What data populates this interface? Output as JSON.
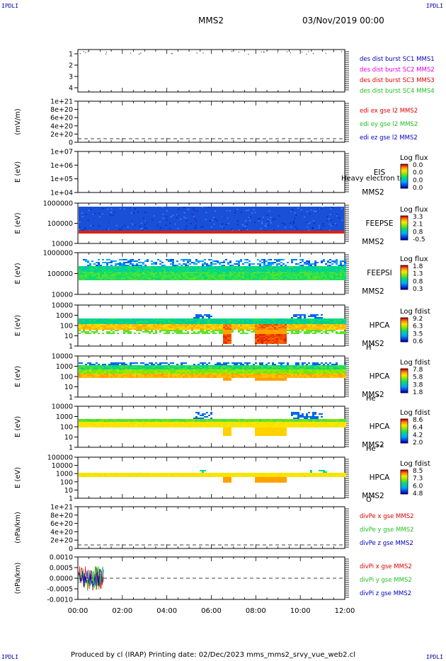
{
  "corner_tl": "IPDLI",
  "corner_tr": "IPDLI",
  "corner_bl": "IPDLI",
  "corner_br": "IPDLI",
  "header": {
    "spacecraft": "MMS2",
    "date": "03/Nov/2019 00:00"
  },
  "footer": "Produced by cl (IRAP)   Printing date: 02/Dec/2023   mms_mms2_srvy_vue_web2.cl",
  "colors": {
    "red": "#e00000",
    "green": "#22c022",
    "blue": "#0000c0",
    "magenta": "#e000e0"
  },
  "chart_data": [
    {
      "type": "line",
      "ylim": [
        0.5,
        4.5
      ],
      "yticks": [
        "1",
        "2",
        "3",
        "4"
      ],
      "legend": [
        {
          "text": "des dist burst SC1 MMS1",
          "color": "#0000c0"
        },
        {
          "text": "des dist burst SC2 MMS2",
          "color": "#e000e0"
        },
        {
          "text": "des dist burst SC3 MMS3",
          "color": "#e00000"
        },
        {
          "text": "des dist burst SC4 MMS4",
          "color": "#22c022"
        }
      ]
    },
    {
      "type": "line",
      "ylabel": "(mV/m)",
      "yticks": [
        "1e+21",
        "8e+20",
        "6e+20",
        "4e+20",
        "2e+20",
        "0"
      ],
      "legend": [
        {
          "text": "edi ex gse l2 MMS2",
          "color": "#e00000"
        },
        {
          "text": "edi ey gse l2 MMS2",
          "color": "#22c022"
        },
        {
          "text": "edi ez gse l2 MMS2",
          "color": "#0000c0"
        }
      ]
    },
    {
      "type": "heatmap",
      "ylabel": "E (eV)",
      "yticks": [
        "1e+07",
        "1e+06",
        "1e+05",
        "1e+04"
      ],
      "instrument": [
        "EIS",
        "MMS2"
      ],
      "overlay": "Heavy electron tof",
      "colorbar": {
        "label": "Log flux",
        "ticks": [
          "0.0",
          "0.0",
          "0.0",
          "0.0"
        ]
      }
    },
    {
      "type": "heatmap",
      "ylabel": "E (eV)",
      "yticks": [
        "1000000",
        "100000",
        "10000"
      ],
      "instrument": [
        "FEEPSE",
        "MMS2"
      ],
      "colorbar": {
        "label": "Log flux",
        "ticks": [
          "3.3",
          "2.1",
          "0.8",
          "-0.5"
        ]
      }
    },
    {
      "type": "heatmap",
      "ylabel": "E (eV)",
      "yticks": [
        "1000000",
        "100000",
        "10000"
      ],
      "instrument": [
        "FEEPSI",
        "MMS2"
      ],
      "colorbar": {
        "label": "Log flux",
        "ticks": [
          "1.8",
          "1.3",
          "0.8",
          "0.3"
        ]
      }
    },
    {
      "type": "heatmap",
      "ylabel": "E (eV)",
      "yticks": [
        "10000",
        "1000",
        "100",
        "10",
        "1"
      ],
      "instrument": [
        "HPCA",
        "MMS2"
      ],
      "species": "H",
      "species_sup": "+",
      "colorbar": {
        "label": "Log fdist",
        "ticks": [
          "9.2",
          "6.3",
          "3.5",
          "0.6"
        ]
      }
    },
    {
      "type": "heatmap",
      "ylabel": "E (eV)",
      "yticks": [
        "10000",
        "1000",
        "100",
        "10",
        "1"
      ],
      "instrument": [
        "HPCA",
        "MMS2"
      ],
      "species": "He",
      "species_sup": "+",
      "colorbar": {
        "label": "Log fdist",
        "ticks": [
          "7.8",
          "5.8",
          "3.8",
          "1.8"
        ]
      }
    },
    {
      "type": "heatmap",
      "ylabel": "E (eV)",
      "yticks": [
        "10000",
        "1000",
        "100",
        "10",
        "1"
      ],
      "instrument": [
        "HPCA",
        "MMS2"
      ],
      "species": "He",
      "species_sup": "++",
      "colorbar": {
        "label": "Log fdist",
        "ticks": [
          "8.6",
          "6.4",
          "4.2",
          "2.0"
        ]
      }
    },
    {
      "type": "heatmap",
      "ylabel": "E (eV)",
      "yticks": [
        "100000",
        "10000",
        "1000",
        "100",
        "10",
        "1"
      ],
      "instrument": [
        "HPCA",
        "MMS2"
      ],
      "species": "O",
      "species_sup": "+",
      "colorbar": {
        "label": "Log fdist",
        "ticks": [
          "8.5",
          "7.3",
          "6.0",
          "4.8"
        ]
      }
    },
    {
      "type": "line",
      "ylabel": "(nPa/km)",
      "yticks": [
        "1e+21",
        "8e+20",
        "6e+20",
        "4e+20",
        "2e+20",
        "0"
      ],
      "legend": [
        {
          "text": "divPe x gse MMS2",
          "color": "#e00000"
        },
        {
          "text": "divPe y gse MMS2",
          "color": "#22c022"
        },
        {
          "text": "divPe z gse MMS2",
          "color": "#0000c0"
        }
      ]
    },
    {
      "type": "line",
      "ylabel": "(nPa/km)",
      "yticks": [
        "0.0010",
        "0.0005",
        "0.0000",
        "-0.0005",
        "-0.0010"
      ],
      "legend": [
        {
          "text": "divPi x gse MMS2",
          "color": "#e00000"
        },
        {
          "text": "divPi y gse MMS2",
          "color": "#22c022"
        },
        {
          "text": "divPi z gse MMS2",
          "color": "#0000c0"
        }
      ]
    }
  ],
  "xaxis": {
    "ticks": [
      "00:00",
      "02:00",
      "04:00",
      "06:00",
      "08:00",
      "10:00",
      "12:00"
    ],
    "range_hours": [
      0,
      12
    ]
  }
}
